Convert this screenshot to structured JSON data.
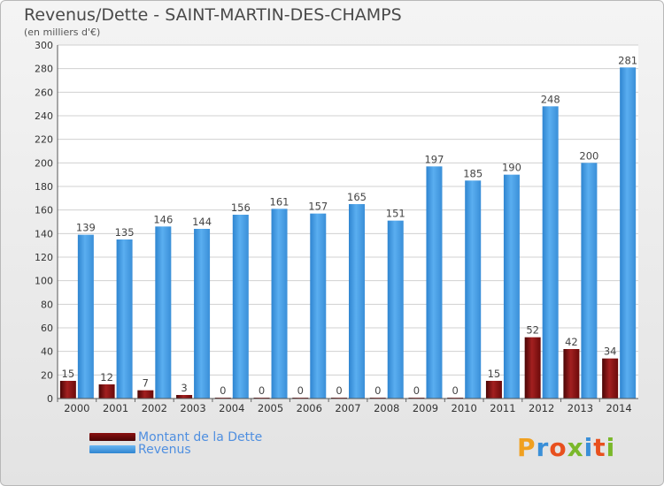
{
  "header": {
    "title": "Revenus/Dette - SAINT-MARTIN-DES-CHAMPS",
    "subtitle": "(en milliers d'€)"
  },
  "chart_data": {
    "type": "bar",
    "categories": [
      "2000",
      "2001",
      "2002",
      "2003",
      "2004",
      "2005",
      "2006",
      "2007",
      "2008",
      "2009",
      "2010",
      "2011",
      "2012",
      "2013",
      "2014"
    ],
    "series": [
      {
        "name": "Montant de la Dette",
        "color": "#7a0f0f",
        "values": [
          15,
          12,
          7,
          3,
          0,
          0,
          0,
          0,
          0,
          0,
          0,
          15,
          52,
          42,
          34
        ]
      },
      {
        "name": "Revenus",
        "color": "#4a9fe4",
        "values": [
          139,
          135,
          146,
          144,
          156,
          161,
          157,
          165,
          151,
          197,
          185,
          190,
          248,
          200,
          281
        ]
      }
    ],
    "title": "Revenus/Dette - SAINT-MARTIN-DES-CHAMPS",
    "ylabel": "(en milliers d'€)",
    "ylim": [
      0,
      300
    ],
    "yticks": [
      0,
      20,
      40,
      60,
      80,
      100,
      120,
      140,
      160,
      180,
      200,
      220,
      240,
      260,
      280,
      300
    ],
    "grid": true,
    "legend": "bottom-left"
  },
  "legend": {
    "items": [
      {
        "label": "Montant de la Dette",
        "color": "#6b0a0a"
      },
      {
        "label": "Revenus",
        "color": "#4a9fe4"
      }
    ]
  },
  "logo": {
    "text": "Proxiti",
    "letter_colors": [
      "#f0a020",
      "#3a8fd8",
      "#e8501e",
      "#7ab82a",
      "#3a8fd8",
      "#e8501e",
      "#7ab82a"
    ]
  }
}
